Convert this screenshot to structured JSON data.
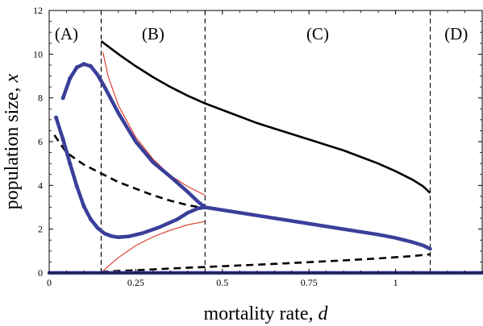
{
  "chart_data": {
    "type": "line",
    "xlabel": "mortality rate, ",
    "xlabel_var": "d",
    "ylabel": "population size, ",
    "ylabel_var": "x",
    "xlim": [
      0,
      1.25
    ],
    "ylim": [
      0,
      12
    ],
    "xticks": [
      {
        "value": 0,
        "label": "0"
      },
      {
        "value": 0.25,
        "label": "0.25"
      },
      {
        "value": 0.5,
        "label": "0.5"
      },
      {
        "value": 0.75,
        "label": "0.75"
      },
      {
        "value": 1,
        "label": "1"
      }
    ],
    "yticks": [
      {
        "value": 0,
        "label": "0"
      },
      {
        "value": 2,
        "label": "2"
      },
      {
        "value": 4,
        "label": "4"
      },
      {
        "value": 6,
        "label": "6"
      },
      {
        "value": 8,
        "label": "8"
      },
      {
        "value": 10,
        "label": "10"
      },
      {
        "value": 12,
        "label": "12"
      }
    ],
    "grid": false,
    "region_boundaries": [
      0.15,
      0.45,
      1.1
    ],
    "regions": [
      {
        "label": "(A)",
        "x": 0.05
      },
      {
        "label": "(B)",
        "x": 0.3
      },
      {
        "label": "(C)",
        "x": 0.775
      },
      {
        "label": "(D)",
        "x": 1.175
      }
    ],
    "series": [
      {
        "style": "black-solid",
        "color": "#000000",
        "x": [
          0.15,
          0.2,
          0.25,
          0.3,
          0.35,
          0.4,
          0.45,
          0.5,
          0.55,
          0.6,
          0.65,
          0.7,
          0.75,
          0.8,
          0.85,
          0.9,
          0.95,
          1.0,
          1.05,
          1.08,
          1.1
        ],
        "y": [
          10.6,
          10.0,
          9.45,
          8.95,
          8.5,
          8.1,
          7.75,
          7.45,
          7.15,
          6.85,
          6.6,
          6.35,
          6.1,
          5.85,
          5.6,
          5.3,
          5.0,
          4.65,
          4.25,
          3.95,
          3.65
        ]
      },
      {
        "style": "black-dashed-upper",
        "color": "#000000",
        "x": [
          0.015,
          0.05,
          0.1,
          0.15,
          0.2,
          0.25,
          0.3,
          0.35,
          0.4,
          0.45
        ],
        "y": [
          6.3,
          5.5,
          4.95,
          4.55,
          4.15,
          3.85,
          3.55,
          3.3,
          3.1,
          2.95
        ]
      },
      {
        "style": "black-dashed-lower",
        "color": "#000000",
        "x": [
          0.15,
          0.25,
          0.35,
          0.45,
          0.55,
          0.65,
          0.75,
          0.85,
          0.95,
          1.05,
          1.1
        ],
        "y": [
          0.05,
          0.12,
          0.2,
          0.27,
          0.34,
          0.41,
          0.49,
          0.57,
          0.66,
          0.77,
          0.85
        ]
      },
      {
        "style": "red-thin-upper",
        "color": "#dd2211",
        "x": [
          0.155,
          0.17,
          0.2,
          0.25,
          0.3,
          0.35,
          0.4,
          0.45
        ],
        "y": [
          10.1,
          9.0,
          7.65,
          6.2,
          5.2,
          4.45,
          3.95,
          3.55
        ]
      },
      {
        "style": "red-thin-lower",
        "color": "#dd2211",
        "x": [
          0.15,
          0.17,
          0.2,
          0.25,
          0.3,
          0.35,
          0.4,
          0.45
        ],
        "y": [
          0.0,
          0.3,
          0.7,
          1.25,
          1.65,
          1.95,
          2.2,
          2.35
        ]
      },
      {
        "style": "blue-thick-upper",
        "color": "#3a3f9a",
        "x": [
          0.04,
          0.06,
          0.08,
          0.1,
          0.12,
          0.14,
          0.16,
          0.2,
          0.25,
          0.3,
          0.35,
          0.4,
          0.43,
          0.45
        ],
        "y": [
          8.0,
          8.9,
          9.4,
          9.55,
          9.45,
          9.05,
          8.5,
          7.3,
          6.0,
          5.05,
          4.4,
          3.7,
          3.25,
          3.0
        ]
      },
      {
        "style": "blue-thick-lower",
        "color": "#3a3f9a",
        "x": [
          0.02,
          0.04,
          0.06,
          0.08,
          0.1,
          0.12,
          0.14,
          0.16,
          0.18,
          0.2,
          0.23,
          0.27,
          0.32,
          0.37,
          0.4,
          0.43,
          0.45
        ],
        "y": [
          7.1,
          6.1,
          5.0,
          3.95,
          3.05,
          2.45,
          2.05,
          1.8,
          1.68,
          1.63,
          1.67,
          1.82,
          2.1,
          2.45,
          2.75,
          2.95,
          3.0
        ]
      },
      {
        "style": "blue-thick-merged",
        "color": "#3a3f9a",
        "x": [
          0.45,
          0.55,
          0.65,
          0.75,
          0.85,
          0.95,
          1.0,
          1.05,
          1.08,
          1.1
        ],
        "y": [
          3.0,
          2.75,
          2.5,
          2.25,
          2.0,
          1.75,
          1.6,
          1.4,
          1.25,
          1.1
        ]
      },
      {
        "style": "blue-thick-zero",
        "color": "#3a3f9a",
        "x": [
          0,
          1.25
        ],
        "y": [
          0,
          0
        ]
      }
    ]
  }
}
